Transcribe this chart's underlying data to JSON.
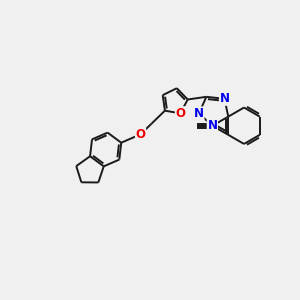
{
  "bg_color": "#f0f0f0",
  "bond_color": "#1a1a1a",
  "N_color": "#0000ee",
  "O_color": "#ee0000",
  "bond_width": 1.4,
  "dbo": 0.07,
  "font_size": 8.5,
  "fig_width": 3.0,
  "fig_height": 3.0,
  "xlim": [
    -4.8,
    5.0
  ],
  "ylim": [
    -3.2,
    3.2
  ]
}
